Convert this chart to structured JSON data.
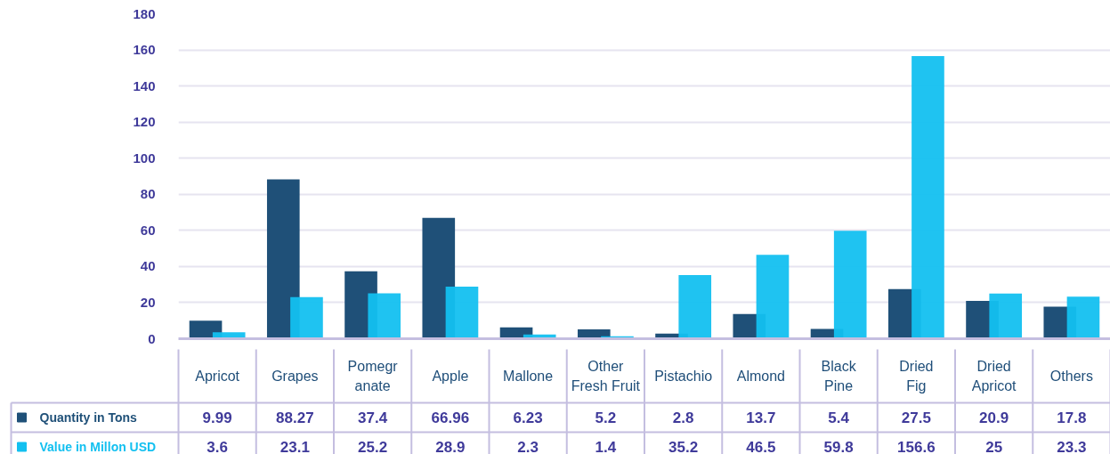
{
  "chart_data": {
    "type": "bar",
    "categories": [
      "Apricot",
      "Grapes",
      "Pomegr anate",
      "Apple",
      "Mallone",
      "Other Fresh Fruit",
      "Pistachio",
      "Almond",
      "Black Pine",
      "Dried Fig",
      "Dried Apricot",
      "Others"
    ],
    "series": [
      {
        "name": "Quantity in Tons",
        "color": "#1f5078",
        "values": [
          9.99,
          88.27,
          37.4,
          66.96,
          6.23,
          5.2,
          2.8,
          13.7,
          5.4,
          27.5,
          20.9,
          17.8
        ]
      },
      {
        "name": "Value in Millon USD",
        "color": "#13c0f0",
        "values": [
          3.6,
          23.1,
          25.2,
          28.9,
          2.3,
          1.4,
          35.2,
          46.5,
          59.8,
          156.6,
          25,
          23.3
        ]
      }
    ],
    "ylim": [
      0,
      180
    ],
    "yticks": [
      0,
      20,
      40,
      60,
      80,
      100,
      120,
      140,
      160,
      180
    ],
    "grid": "y",
    "legend": "bottom left",
    "data_labels": true
  }
}
